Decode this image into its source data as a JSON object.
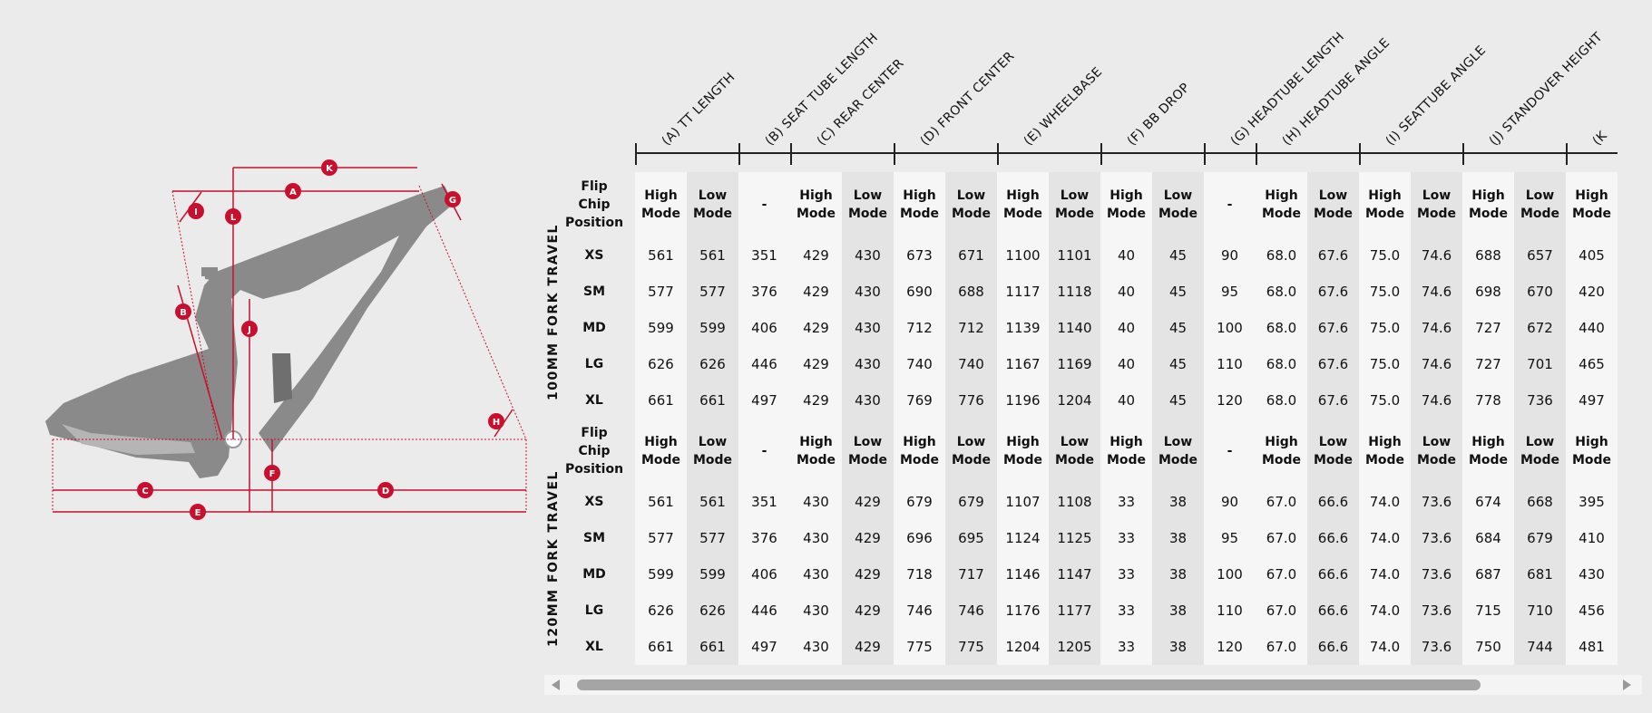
{
  "diagram_labels": {
    "a": "A",
    "b": "B",
    "c": "C",
    "d": "D",
    "e": "E",
    "f": "F",
    "g": "G",
    "h": "H",
    "i": "I",
    "j": "J",
    "k": "K",
    "l": "L"
  },
  "columns": [
    {
      "label": "(A) TT LENGTH",
      "span": 2
    },
    {
      "label": "(B) SEAT TUBE LENGTH",
      "span": 1
    },
    {
      "label": "(C) REAR CENTER",
      "span": 2
    },
    {
      "label": "(D) FRONT CENTER",
      "span": 2
    },
    {
      "label": "(E) WHEELBASE",
      "span": 2
    },
    {
      "label": "(F) BB DROP",
      "span": 2
    },
    {
      "label": "(G) HEADTUBE LENGTH",
      "span": 1
    },
    {
      "label": "(H) HEADTUBE ANGLE",
      "span": 2
    },
    {
      "label": "(I) SEATTUBE ANGLE",
      "span": 2
    },
    {
      "label": "(J) STANDOVER HEIGHT",
      "span": 2
    },
    {
      "label": "(K",
      "span": 1
    }
  ],
  "flip_chip_label": "Flip\nChip\nPosition",
  "mode_headers": [
    "High\nMode",
    "Low\nMode",
    "-",
    "High\nMode",
    "Low\nMode",
    "High\nMode",
    "Low\nMode",
    "High\nMode",
    "Low\nMode",
    "High\nMode",
    "Low\nMode",
    "-",
    "High\nMode",
    "Low\nMode",
    "High\nMode",
    "Low\nMode",
    "High\nMode",
    "Low\nMode",
    "High\nMode"
  ],
  "sections": [
    {
      "title": "100MM FORK TRAVEL",
      "rows": [
        {
          "size": "XS",
          "values": [
            "561",
            "561",
            "351",
            "429",
            "430",
            "673",
            "671",
            "1100",
            "1101",
            "40",
            "45",
            "90",
            "68.0",
            "67.6",
            "75.0",
            "74.6",
            "688",
            "657",
            "405"
          ]
        },
        {
          "size": "SM",
          "values": [
            "577",
            "577",
            "376",
            "429",
            "430",
            "690",
            "688",
            "1117",
            "1118",
            "40",
            "45",
            "95",
            "68.0",
            "67.6",
            "75.0",
            "74.6",
            "698",
            "670",
            "420"
          ]
        },
        {
          "size": "MD",
          "values": [
            "599",
            "599",
            "406",
            "429",
            "430",
            "712",
            "712",
            "1139",
            "1140",
            "40",
            "45",
            "100",
            "68.0",
            "67.6",
            "75.0",
            "74.6",
            "727",
            "672",
            "440"
          ]
        },
        {
          "size": "LG",
          "values": [
            "626",
            "626",
            "446",
            "429",
            "430",
            "740",
            "740",
            "1167",
            "1169",
            "40",
            "45",
            "110",
            "68.0",
            "67.6",
            "75.0",
            "74.6",
            "727",
            "701",
            "465"
          ]
        },
        {
          "size": "XL",
          "values": [
            "661",
            "661",
            "497",
            "429",
            "430",
            "769",
            "776",
            "1196",
            "1204",
            "40",
            "45",
            "120",
            "68.0",
            "67.6",
            "75.0",
            "74.6",
            "778",
            "736",
            "497"
          ]
        }
      ]
    },
    {
      "title": "120MM FORK TRAVEL",
      "rows": [
        {
          "size": "XS",
          "values": [
            "561",
            "561",
            "351",
            "430",
            "429",
            "679",
            "679",
            "1107",
            "1108",
            "33",
            "38",
            "90",
            "67.0",
            "66.6",
            "74.0",
            "73.6",
            "674",
            "668",
            "395"
          ]
        },
        {
          "size": "SM",
          "values": [
            "577",
            "577",
            "376",
            "430",
            "429",
            "696",
            "695",
            "1124",
            "1125",
            "33",
            "38",
            "95",
            "67.0",
            "66.6",
            "74.0",
            "73.6",
            "684",
            "679",
            "410"
          ]
        },
        {
          "size": "MD",
          "values": [
            "599",
            "599",
            "406",
            "430",
            "429",
            "718",
            "717",
            "1146",
            "1147",
            "33",
            "38",
            "100",
            "67.0",
            "66.6",
            "74.0",
            "73.6",
            "687",
            "681",
            "430"
          ]
        },
        {
          "size": "LG",
          "values": [
            "626",
            "626",
            "446",
            "430",
            "429",
            "746",
            "746",
            "1176",
            "1177",
            "33",
            "38",
            "110",
            "67.0",
            "66.6",
            "74.0",
            "73.6",
            "715",
            "710",
            "456"
          ]
        },
        {
          "size": "XL",
          "values": [
            "661",
            "661",
            "497",
            "430",
            "429",
            "775",
            "775",
            "1204",
            "1205",
            "33",
            "38",
            "120",
            "67.0",
            "66.6",
            "74.0",
            "73.6",
            "750",
            "744",
            "481"
          ]
        }
      ]
    }
  ],
  "colors": {
    "accent": "#c8102e",
    "frame": "#8a8a8a",
    "cell_light": "#f6f6f6",
    "cell_dark": "#e4e4e4"
  }
}
